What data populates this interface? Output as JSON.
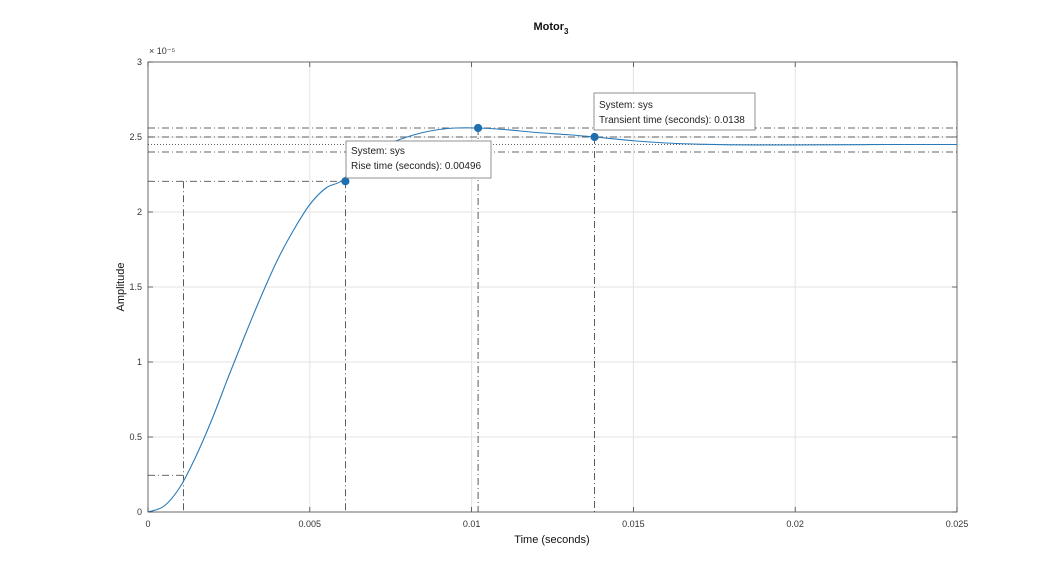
{
  "chart_data": {
    "type": "line",
    "title": "Motor",
    "title_subscript": "3",
    "xlabel": "Time (seconds)",
    "ylabel": "Amplitude",
    "exponent_label": "× 10⁻⁵",
    "xlim": [
      0,
      0.025
    ],
    "ylim": [
      0,
      3
    ],
    "xticks": [
      0,
      0.005,
      0.01,
      0.015,
      0.02,
      0.025
    ],
    "xtick_labels": [
      "0",
      "0.005",
      "0.01",
      "0.015",
      "0.02",
      "0.025"
    ],
    "yticks": [
      0,
      0.5,
      1,
      1.5,
      2,
      2.5,
      3
    ],
    "ytick_labels": [
      "0",
      "0.5",
      "1",
      "1.5",
      "2",
      "2.5",
      "3"
    ],
    "grid": true,
    "line_color": "#2a7ab8",
    "series": [
      {
        "x": [
          0,
          0.0005,
          0.001,
          0.0015,
          0.002,
          0.0025,
          0.003,
          0.0035,
          0.004,
          0.0045,
          0.005,
          0.0055,
          0.006,
          0.0065,
          0.007,
          0.0075,
          0.008,
          0.0085,
          0.009,
          0.0095,
          0.0102,
          0.011,
          0.012,
          0.013,
          0.0138,
          0.015,
          0.016,
          0.017,
          0.018,
          0.019,
          0.02,
          0.021,
          0.022,
          0.023,
          0.024,
          0.025
        ],
        "values": [
          0,
          0.04,
          0.17,
          0.38,
          0.63,
          0.91,
          1.18,
          1.44,
          1.68,
          1.88,
          2.05,
          2.16,
          2.21,
          2.33,
          2.41,
          2.46,
          2.5,
          2.53,
          2.55,
          2.56,
          2.56,
          2.55,
          2.53,
          2.515,
          2.5,
          2.475,
          2.46,
          2.452,
          2.448,
          2.447,
          2.447,
          2.448,
          2.449,
          2.45,
          2.45,
          2.45
        ]
      }
    ],
    "reference_lines": {
      "steady_state": 2.45,
      "settling_upper": 2.5,
      "settling_lower": 2.4,
      "rise_lower": 0.245,
      "rise_upper": 2.205,
      "peak": 2.56
    },
    "markers": [
      {
        "x": 0.0061,
        "y": 2.205
      },
      {
        "x": 0.0102,
        "y": 2.56
      },
      {
        "x": 0.0138,
        "y": 2.5
      }
    ],
    "vertical_guides": [
      {
        "x": 0.0011,
        "y": 0.245
      },
      {
        "x": 0.0061,
        "y": 2.205
      },
      {
        "x": 0.0102,
        "y": 2.56
      },
      {
        "x": 0.0138,
        "y": 2.5
      }
    ],
    "datatips": [
      {
        "line1": "System: sys",
        "line2": "Rise time (seconds): 0.00496"
      },
      {
        "line1": "System: sys",
        "line2": "Transient time (seconds): 0.0138"
      }
    ]
  }
}
